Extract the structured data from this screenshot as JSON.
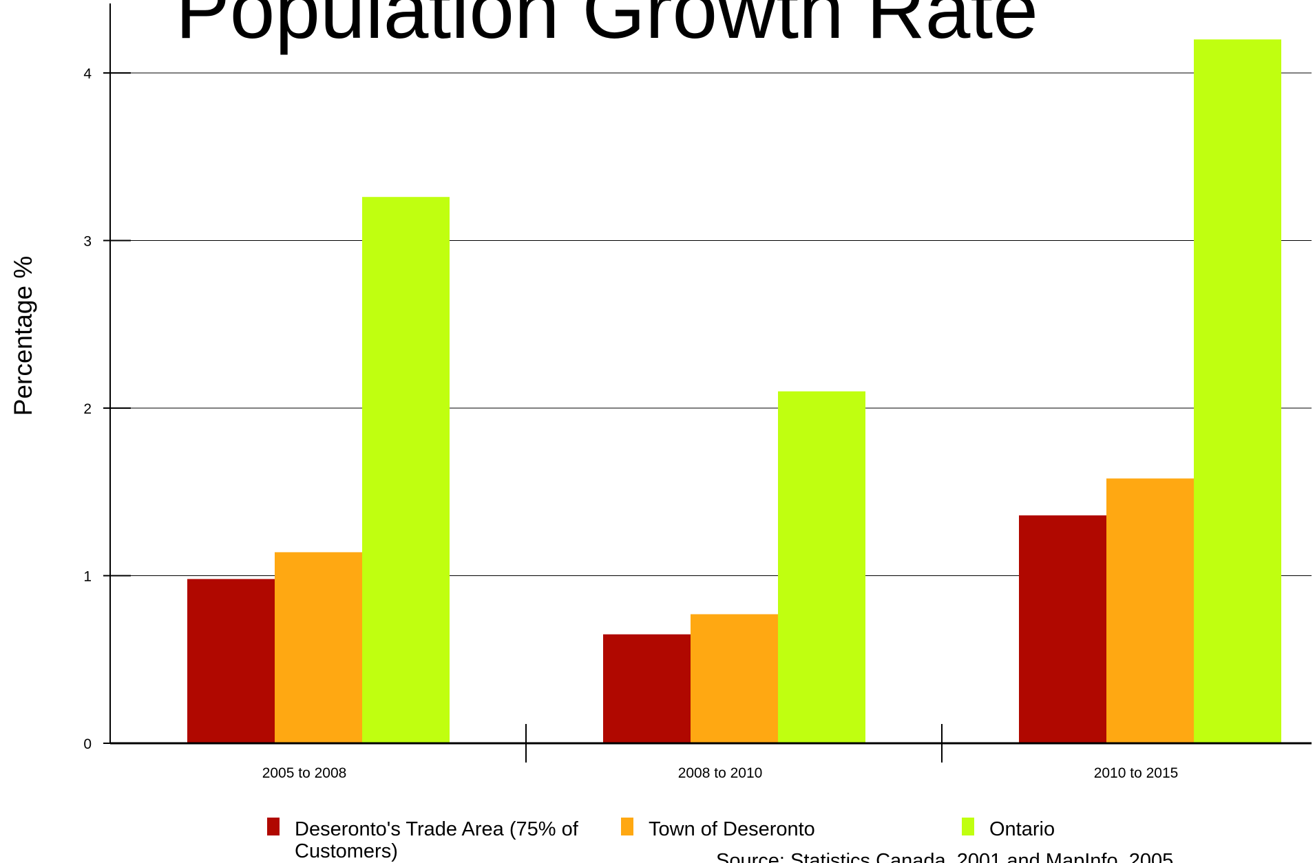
{
  "chart_data": {
    "type": "bar",
    "title": "Population Growth Rate",
    "ylabel": "Percentage %",
    "xlabel": "",
    "categories": [
      "2005 to 2008",
      "2008 to 2010",
      "2010 to 2015"
    ],
    "series": [
      {
        "name": "Deseronto's Trade Area (75% of Customers)",
        "name_lines": [
          "Deseronto's Trade Area (75% of",
          "Customers)"
        ],
        "color": "#b00800",
        "values": [
          0.98,
          0.65,
          1.36
        ]
      },
      {
        "name": "Town of Deseronto",
        "color": "#ffa812",
        "values": [
          1.14,
          0.77,
          1.58
        ]
      },
      {
        "name": "Ontario",
        "color": "#c0ff10",
        "values": [
          3.26,
          2.1,
          4.2
        ]
      }
    ],
    "yticks": [
      0,
      1,
      2,
      3,
      4
    ],
    "ylim": [
      0,
      4.2
    ],
    "grid": true,
    "legend_position": "bottom",
    "source": "Source: Statistics Canada, 2001 and MapInfo, 2005"
  }
}
